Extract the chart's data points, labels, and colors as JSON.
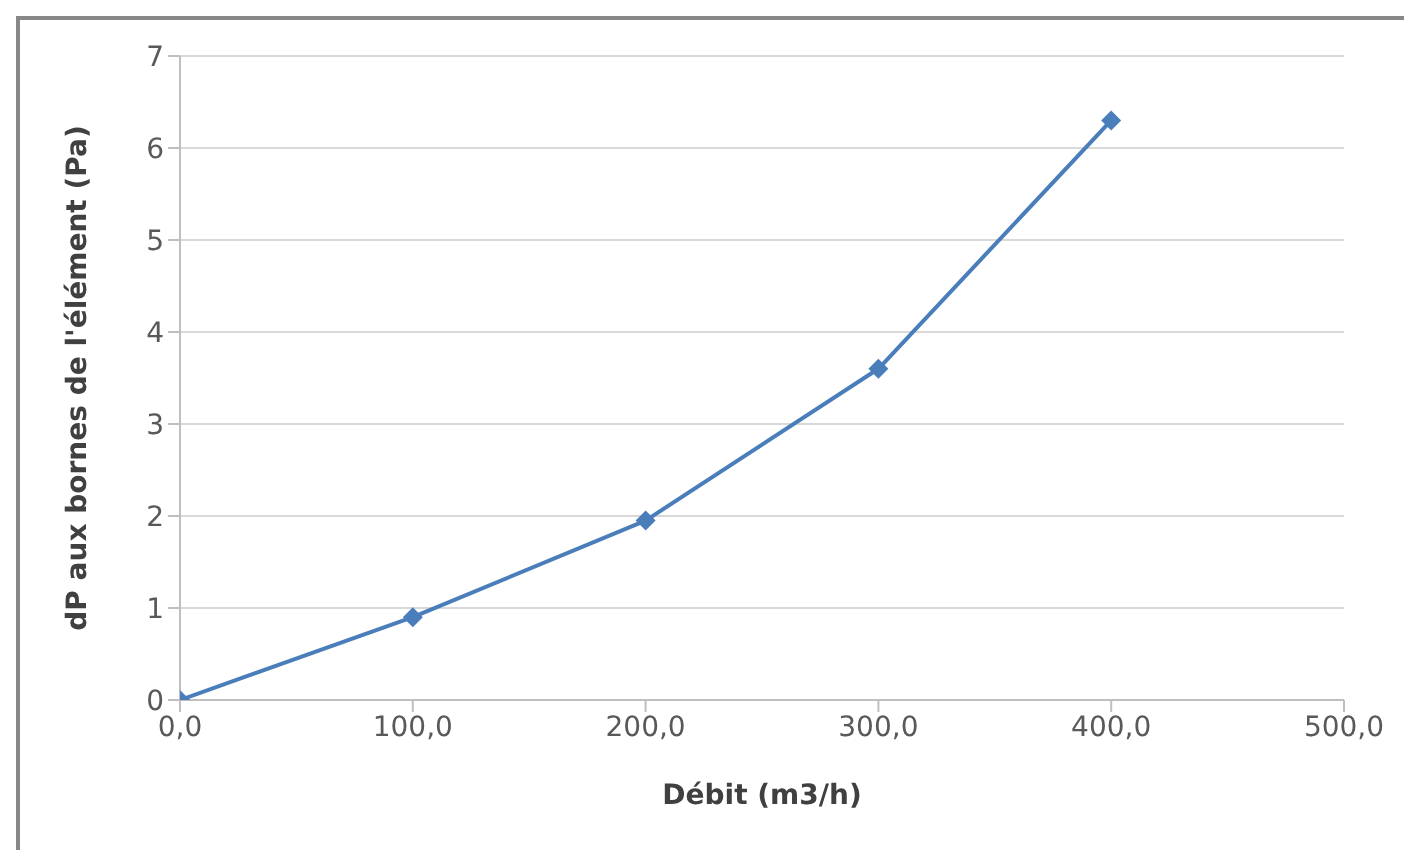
{
  "chart_data": {
    "type": "line",
    "xlabel": "Débit (m3/h)",
    "ylabel": "dP aux bornes de l'élément (Pa)",
    "x": [
      0,
      100,
      200,
      300,
      400
    ],
    "series": [
      {
        "color": "#4a7ebb",
        "values": [
          0,
          0.9,
          1.95,
          3.6,
          6.3
        ]
      }
    ],
    "xlim": [
      0,
      500
    ],
    "xticks": [
      {
        "value": 0,
        "label": "0,0"
      },
      {
        "value": 100,
        "label": "100,0"
      },
      {
        "value": 200,
        "label": "200,0"
      },
      {
        "value": 300,
        "label": "300,0"
      },
      {
        "value": 400,
        "label": "400,0"
      },
      {
        "value": 500,
        "label": "500,0"
      }
    ],
    "ylim": [
      0,
      7
    ],
    "yticks": [
      0,
      1,
      2,
      3,
      4,
      5,
      6,
      7
    ],
    "grid": "y",
    "marker": "diamond",
    "legend": false
  }
}
